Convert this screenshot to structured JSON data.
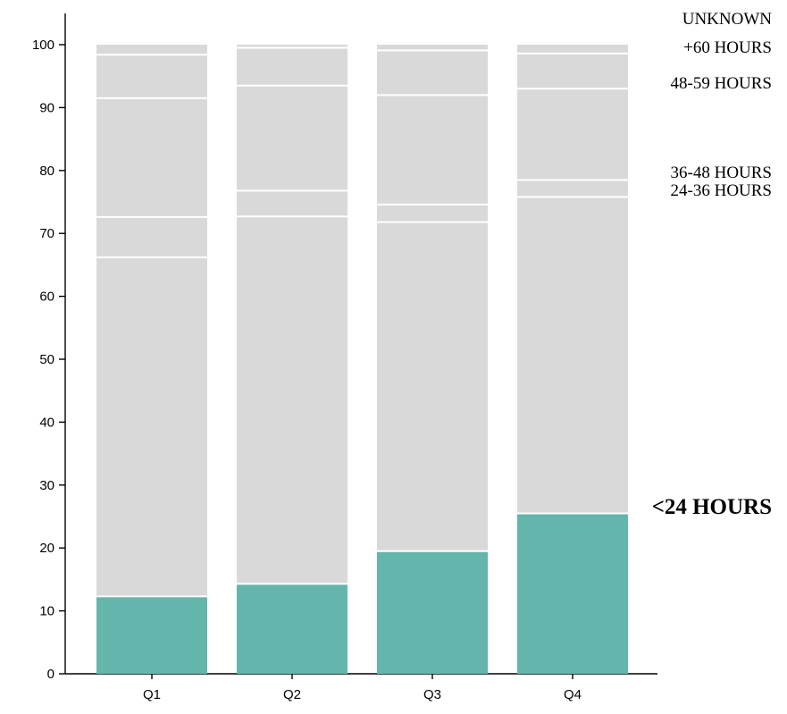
{
  "chart_data": {
    "type": "bar",
    "stacked": true,
    "categories": [
      "Q1",
      "Q2",
      "Q3",
      "Q4"
    ],
    "ylim": [
      0,
      100
    ],
    "yticks": [
      0,
      10,
      20,
      30,
      40,
      50,
      60,
      70,
      80,
      90,
      100
    ],
    "series": [
      {
        "name": "<24 HOURS",
        "values": [
          12.3,
          14.3,
          19.5,
          25.5
        ],
        "color": "#64b5ac",
        "emphasis": true
      },
      {
        "name": "24-36 HOURS",
        "values": [
          53.9,
          58.4,
          52.3,
          50.3
        ],
        "color": "#d9d9d9"
      },
      {
        "name": "36-48 HOURS",
        "values": [
          6.4,
          4.1,
          2.8,
          2.7
        ],
        "color": "#d9d9d9"
      },
      {
        "name": "48-59 HOURS",
        "values": [
          18.9,
          16.7,
          17.4,
          14.5
        ],
        "color": "#d9d9d9"
      },
      {
        "name": "+60 HOURS",
        "values": [
          6.9,
          6.0,
          7.1,
          5.6
        ],
        "color": "#d9d9d9"
      },
      {
        "name": "UNKNOWN",
        "values": [
          1.6,
          0.5,
          0.9,
          1.4
        ],
        "color": "#d9d9d9"
      }
    ],
    "xlabel": "",
    "ylabel": "",
    "grid": false,
    "legend": "right-inline-labels"
  }
}
